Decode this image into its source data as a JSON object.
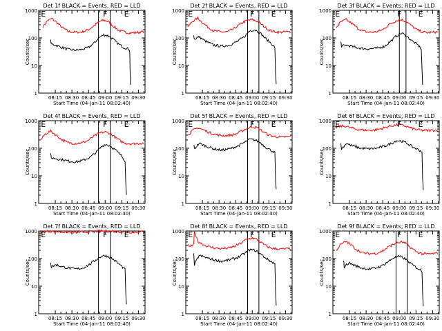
{
  "chart_data": [
    {
      "type": "line",
      "title": "Det 1f BLACK = Events, RED = LLD",
      "xlabel": "Start Time (04-Jan-11 08:02:40)",
      "ylabel": "Counts/sec",
      "x_ticks": [
        "08:15",
        "08:30",
        "08:45",
        "09:00",
        "09:15",
        "09:30"
      ],
      "y_ticks": [
        "1",
        "10",
        "100",
        "1000"
      ],
      "y_scale": "log",
      "ylim": [
        1,
        1000
      ],
      "xlim": [
        8.0,
        9.6
      ],
      "markers": [
        "E",
        "F",
        "E"
      ],
      "marker_x": [
        8.07,
        9.0,
        9.32
      ],
      "vlines": [
        8.9,
        9.08
      ],
      "series": [
        {
          "color": "#ff0000",
          "x": [
            8.07,
            8.13,
            8.2,
            8.28,
            8.35,
            8.45,
            8.55,
            8.65,
            8.75,
            8.85,
            8.92,
            8.98,
            9.05,
            9.12,
            9.2,
            9.3,
            9.4,
            9.5,
            9.58
          ],
          "values": [
            260,
            420,
            500,
            350,
            240,
            170,
            160,
            165,
            200,
            300,
            400,
            440,
            390,
            270,
            190,
            160,
            150,
            160,
            165
          ]
        },
        {
          "color": "#000000",
          "x": [
            8.18,
            8.19,
            8.25,
            8.35,
            8.45,
            8.55,
            8.65,
            8.75,
            8.85,
            8.9,
            8.98,
            9.05,
            9.12,
            9.2,
            9.28,
            9.35,
            9.36,
            9.37,
            9.38
          ],
          "values": [
            80,
            60,
            55,
            45,
            38,
            36,
            38,
            45,
            70,
            100,
            130,
            120,
            90,
            60,
            45,
            40,
            38,
            30,
            2
          ]
        }
      ]
    },
    {
      "type": "line",
      "title": "Det 2f BLACK = Events, RED = LLD",
      "xlabel": "Start Time (04-Jan-11 08:02:40)",
      "ylabel": "Counts/sec",
      "x_ticks": [
        "08:15",
        "08:30",
        "08:45",
        "09:00",
        "09:15",
        "09:30"
      ],
      "y_ticks": [
        "1",
        "10",
        "100",
        "1000"
      ],
      "y_scale": "log",
      "ylim": [
        1,
        1000
      ],
      "xlim": [
        8.0,
        9.6
      ],
      "markers": [
        "E",
        "F",
        "E"
      ],
      "marker_x": [
        8.07,
        9.0,
        9.32
      ],
      "vlines": [
        8.93,
        9.1
      ],
      "series": [
        {
          "color": "#ff0000",
          "x": [
            8.03,
            8.1,
            8.18,
            8.25,
            8.33,
            8.42,
            8.52,
            8.62,
            8.72,
            8.82,
            8.92,
            9.0,
            9.08,
            9.16,
            9.24,
            9.32,
            9.4,
            9.5,
            9.58
          ],
          "values": [
            250,
            400,
            520,
            360,
            250,
            180,
            165,
            165,
            210,
            320,
            430,
            460,
            400,
            280,
            200,
            170,
            160,
            165,
            170
          ]
        },
        {
          "color": "#000000",
          "x": [
            8.12,
            8.13,
            8.2,
            8.3,
            8.42,
            8.54,
            8.66,
            8.78,
            8.88,
            8.96,
            9.04,
            9.12,
            9.2,
            9.28,
            9.34,
            9.35,
            9.36
          ],
          "values": [
            120,
            90,
            110,
            75,
            55,
            50,
            55,
            75,
            110,
            180,
            200,
            150,
            95,
            65,
            45,
            6,
            2
          ]
        }
      ]
    },
    {
      "type": "line",
      "title": "Det 3f BLACK = Events, RED = LLD",
      "xlabel": "Start Time (04-Jan-11 08:02:40)",
      "ylabel": "Counts/sec",
      "x_ticks": [
        "08:15",
        "08:30",
        "08:45",
        "09:00",
        "09:15",
        "09:30"
      ],
      "y_ticks": [
        "1",
        "10",
        "100",
        "1000"
      ],
      "y_scale": "log",
      "ylim": [
        1,
        1000
      ],
      "xlim": [
        8.0,
        9.6
      ],
      "markers": [
        "E",
        "F",
        "E"
      ],
      "marker_x": [
        8.07,
        9.0,
        9.32
      ],
      "vlines": [
        9.0,
        9.1
      ],
      "series": [
        {
          "color": "#ff0000",
          "x": [
            8.05,
            8.12,
            8.2,
            8.28,
            8.36,
            8.45,
            8.55,
            8.65,
            8.75,
            8.85,
            8.95,
            9.03,
            9.1,
            9.18,
            9.26,
            9.34,
            9.42,
            9.5,
            9.58
          ],
          "values": [
            240,
            380,
            460,
            340,
            240,
            175,
            160,
            165,
            200,
            310,
            420,
            460,
            400,
            280,
            200,
            165,
            155,
            160,
            165
          ]
        },
        {
          "color": "#000000",
          "x": [
            8.12,
            8.13,
            8.2,
            8.3,
            8.42,
            8.54,
            8.66,
            8.78,
            8.88,
            8.96,
            9.04,
            9.12,
            9.2,
            9.28,
            9.33,
            9.34,
            9.35
          ],
          "values": [
            70,
            50,
            55,
            48,
            42,
            40,
            42,
            50,
            80,
            120,
            150,
            110,
            75,
            55,
            40,
            8,
            2
          ]
        }
      ]
    },
    {
      "type": "line",
      "title": "Det 4f BLACK = Events, RED = LLD",
      "xlabel": "Start Time (04-Jan-11 08:02:40)",
      "ylabel": "Counts/sec",
      "x_ticks": [
        "08:15",
        "08:30",
        "08:45",
        "09:00",
        "09:15",
        "09:30"
      ],
      "y_ticks": [
        "1",
        "10",
        "100",
        "1000"
      ],
      "y_scale": "log",
      "ylim": [
        1,
        1000
      ],
      "xlim": [
        8.0,
        9.6
      ],
      "markers": [
        "E",
        "F",
        "E"
      ],
      "marker_x": [
        8.07,
        9.0,
        9.32
      ],
      "vlines": [
        8.9,
        9.08
      ],
      "series": [
        {
          "color": "#ff0000",
          "x": [
            8.03,
            8.1,
            8.18,
            8.26,
            8.34,
            8.44,
            8.54,
            8.64,
            8.74,
            8.84,
            8.92,
            9.0,
            9.08,
            9.16,
            9.24,
            9.32,
            9.42,
            9.5,
            9.58
          ],
          "values": [
            200,
            330,
            420,
            300,
            210,
            160,
            150,
            155,
            190,
            280,
            360,
            390,
            340,
            240,
            175,
            150,
            145,
            150,
            155
          ]
        },
        {
          "color": "#000000",
          "x": [
            8.18,
            8.19,
            8.26,
            8.36,
            8.46,
            8.56,
            8.66,
            8.76,
            8.86,
            8.94,
            9.0,
            9.08,
            9.16,
            9.24,
            9.3,
            9.31,
            9.32
          ],
          "values": [
            60,
            45,
            42,
            38,
            34,
            32,
            36,
            45,
            70,
            110,
            140,
            120,
            85,
            55,
            35,
            6,
            2
          ]
        }
      ]
    },
    {
      "type": "line",
      "title": "Det 5f BLACK = Events, RED = LLD",
      "xlabel": "Start Time (04-Jan-11 08:02:40)",
      "ylabel": "Counts/sec",
      "x_ticks": [
        "08:15",
        "08:30",
        "08:45",
        "09:00",
        "09:15",
        "09:30"
      ],
      "y_ticks": [
        "1",
        "10",
        "100",
        "1000"
      ],
      "y_scale": "log",
      "ylim": [
        1,
        1000
      ],
      "xlim": [
        8.0,
        9.6
      ],
      "markers": [
        "E",
        "F",
        "E"
      ],
      "marker_x": [
        8.07,
        9.0,
        9.32
      ],
      "vlines": [
        8.93,
        9.1
      ],
      "series": [
        {
          "color": "#ff0000",
          "x": [
            8.03,
            8.1,
            8.18,
            8.26,
            8.34,
            8.44,
            8.54,
            8.64,
            8.74,
            8.84,
            8.92,
            9.0,
            9.08,
            9.16,
            9.24,
            9.32,
            9.42,
            9.5,
            9.58
          ],
          "values": [
            300,
            430,
            560,
            470,
            380,
            320,
            290,
            290,
            320,
            420,
            520,
            600,
            550,
            400,
            310,
            270,
            250,
            260,
            270
          ]
        },
        {
          "color": "#000000",
          "x": [
            8.12,
            8.13,
            8.2,
            8.3,
            8.42,
            8.54,
            8.66,
            8.78,
            8.88,
            8.96,
            9.04,
            9.12,
            9.2,
            9.28,
            9.34,
            9.35,
            9.36
          ],
          "values": [
            140,
            95,
            150,
            120,
            95,
            85,
            95,
            120,
            160,
            210,
            200,
            160,
            110,
            85,
            70,
            8,
            3
          ]
        }
      ]
    },
    {
      "type": "line",
      "title": "Det 6f BLACK = Events, RED = LLD",
      "xlabel": "Start Time (04-Jan-11 08:02:40)",
      "ylabel": "Counts/sec",
      "x_ticks": [
        "08:15",
        "08:30",
        "08:45",
        "09:00",
        "09:15",
        "09:30"
      ],
      "y_ticks": [
        "1",
        "10",
        "100",
        "1000"
      ],
      "y_scale": "log",
      "ylim": [
        1,
        1000
      ],
      "xlim": [
        8.0,
        9.6
      ],
      "markers": [
        "E",
        "F",
        "E"
      ],
      "marker_x": [
        8.07,
        9.0,
        9.32
      ],
      "vlines": [],
      "series": [
        {
          "color": "#ff0000",
          "x": [
            8.03,
            8.1,
            8.18,
            8.26,
            8.34,
            8.44,
            8.54,
            8.64,
            8.74,
            8.84,
            8.92,
            9.0,
            9.08,
            9.16,
            9.24,
            9.32,
            9.42,
            9.5,
            9.58
          ],
          "values": [
            550,
            620,
            640,
            560,
            500,
            460,
            450,
            460,
            520,
            620,
            680,
            700,
            650,
            560,
            480,
            450,
            440,
            450,
            460
          ]
        },
        {
          "color": "#000000",
          "x": [
            8.12,
            8.13,
            8.2,
            8.3,
            8.42,
            8.54,
            8.66,
            8.78,
            8.88,
            8.96,
            9.04,
            9.12,
            9.2,
            9.28,
            9.34,
            9.35,
            9.36
          ],
          "values": [
            140,
            95,
            150,
            120,
            100,
            95,
            100,
            120,
            150,
            190,
            180,
            150,
            110,
            90,
            75,
            8,
            3
          ]
        }
      ]
    },
    {
      "type": "line",
      "title": "Det 7f BLACK = Events, RED = LLD",
      "xlabel": "Start Time (04-Jan-11 08:02:40)",
      "ylabel": "Counts/sec",
      "x_ticks": [
        "08:15",
        "08:30",
        "08:45",
        "09:00",
        "09:15",
        "09:30"
      ],
      "y_ticks": [
        "1",
        "10",
        "100",
        "1000"
      ],
      "y_scale": "log",
      "ylim": [
        1,
        1000
      ],
      "xlim": [
        8.0,
        9.6
      ],
      "markers": [
        "E",
        "F",
        "E"
      ],
      "marker_x": [
        8.07,
        9.0,
        9.32
      ],
      "vlines": [
        8.9,
        9.08
      ],
      "series": [
        {
          "color": "#ff0000",
          "x": [
            8.03,
            8.1,
            8.18,
            8.26,
            8.34,
            8.44,
            8.54,
            8.64,
            8.74,
            8.84,
            8.92,
            9.0,
            9.08,
            9.16,
            9.24,
            9.32,
            9.42,
            9.5,
            9.58
          ],
          "values": [
            900,
            950,
            980,
            960,
            930,
            910,
            900,
            910,
            930,
            960,
            990,
            1000,
            980,
            960,
            940,
            920,
            910,
            920,
            930
          ]
        },
        {
          "color": "#000000",
          "x": [
            8.18,
            8.19,
            8.26,
            8.36,
            8.46,
            8.56,
            8.66,
            8.76,
            8.86,
            8.94,
            9.0,
            9.08,
            9.16,
            9.24,
            9.3,
            9.31,
            9.32
          ],
          "values": [
            75,
            50,
            60,
            50,
            45,
            42,
            45,
            60,
            90,
            120,
            130,
            110,
            80,
            55,
            40,
            6,
            2
          ]
        }
      ]
    },
    {
      "type": "line",
      "title": "Det 8f BLACK = Events, RED = LLD",
      "xlabel": "Start Time (04-Jan-11 08:02:40)",
      "ylabel": "Counts/sec",
      "x_ticks": [
        "08:15",
        "08:30",
        "08:45",
        "09:00",
        "09:15",
        "09:30"
      ],
      "y_ticks": [
        "1",
        "10",
        "100",
        "1000"
      ],
      "y_scale": "log",
      "ylim": [
        1,
        1000
      ],
      "xlim": [
        8.0,
        9.6
      ],
      "markers": [
        "E",
        "F",
        "E"
      ],
      "marker_x": [
        8.07,
        9.0,
        9.32
      ],
      "vlines": [
        8.93,
        9.1
      ],
      "series": [
        {
          "color": "#ff0000",
          "x": [
            8.03,
            8.08,
            8.12,
            8.13,
            8.18,
            8.26,
            8.34,
            8.44,
            8.54,
            8.64,
            8.74,
            8.84,
            8.92,
            9.0,
            9.08,
            9.16,
            9.24,
            9.32,
            9.42,
            9.5,
            9.58
          ],
          "values": [
            300,
            280,
            320,
            1000,
            420,
            330,
            270,
            240,
            230,
            240,
            280,
            380,
            500,
            560,
            480,
            340,
            260,
            230,
            220,
            225,
            230
          ]
        },
        {
          "color": "#000000",
          "x": [
            8.12,
            8.13,
            8.2,
            8.3,
            8.42,
            8.54,
            8.66,
            8.78,
            8.88,
            8.96,
            9.04,
            9.12,
            9.2,
            9.28,
            9.34,
            9.35,
            9.36
          ],
          "values": [
            140,
            60,
            130,
            110,
            90,
            80,
            90,
            110,
            150,
            210,
            200,
            150,
            105,
            80,
            65,
            8,
            2
          ]
        }
      ]
    },
    {
      "type": "line",
      "title": "Det 9f BLACK = Events, RED = LLD",
      "xlabel": "Start Time (04-Jan-11 08:02:40)",
      "ylabel": "Counts/sec",
      "x_ticks": [
        "08:15",
        "08:30",
        "08:45",
        "09:00",
        "09:15",
        "09:30"
      ],
      "y_ticks": [
        "1",
        "10",
        "100",
        "1000"
      ],
      "y_scale": "log",
      "ylim": [
        1,
        1000
      ],
      "xlim": [
        8.0,
        9.6
      ],
      "markers": [
        "E",
        "F",
        "E"
      ],
      "marker_x": [
        8.07,
        9.0,
        9.32
      ],
      "vlines": [
        8.95,
        9.12
      ],
      "series": [
        {
          "color": "#ff0000",
          "x": [
            8.05,
            8.12,
            8.2,
            8.28,
            8.36,
            8.45,
            8.55,
            8.65,
            8.75,
            8.85,
            8.95,
            9.03,
            9.1,
            9.18,
            9.26,
            9.34,
            9.42,
            9.5,
            9.58
          ],
          "values": [
            200,
            330,
            420,
            300,
            210,
            160,
            150,
            155,
            190,
            280,
            360,
            400,
            350,
            240,
            175,
            150,
            145,
            150,
            155
          ]
        },
        {
          "color": "#000000",
          "x": [
            8.16,
            8.17,
            8.24,
            8.34,
            8.44,
            8.54,
            8.64,
            8.74,
            8.84,
            8.92,
            9.0,
            9.08,
            9.16,
            9.24,
            9.34,
            9.35,
            9.36
          ],
          "values": [
            90,
            50,
            70,
            55,
            45,
            42,
            45,
            55,
            80,
            110,
            120,
            100,
            70,
            50,
            35,
            6,
            2
          ]
        }
      ]
    }
  ]
}
